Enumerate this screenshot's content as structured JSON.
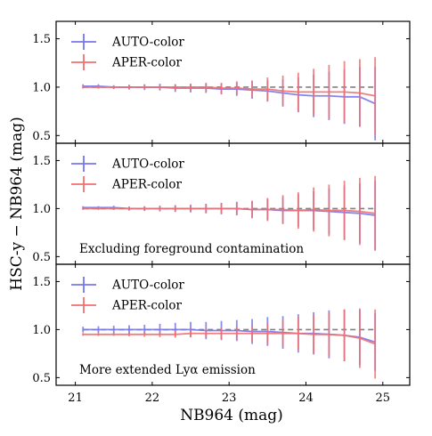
{
  "chart_data": {
    "type": "line",
    "xlabel": "NB964 (mag)",
    "ylabel": "HSC-y − NB964 (mag)",
    "xlim": [
      20.75,
      25.35
    ],
    "ylim": [
      0.42,
      1.68
    ],
    "xticks": [
      "21",
      "22",
      "23",
      "24",
      "25"
    ],
    "yticks": [
      "0.5",
      "1.0",
      "1.5"
    ],
    "x": [
      21.1,
      21.3,
      21.5,
      21.7,
      21.9,
      22.1,
      22.3,
      22.5,
      22.7,
      22.9,
      23.1,
      23.3,
      23.5,
      23.7,
      23.9,
      24.1,
      24.3,
      24.5,
      24.7,
      24.9
    ],
    "reference_line": 1.0,
    "legend_loc": "upper-left",
    "colors": {
      "AUTO-color": "#7777ee",
      "APER-color": "#f07070",
      "reference": "#808080"
    },
    "panels": [
      {
        "annotation": "",
        "series": [
          {
            "name": "AUTO-color",
            "values": [
              1.01,
              1.01,
              1.0,
              1.0,
              1.0,
              1.0,
              0.99,
              0.99,
              0.99,
              0.98,
              0.98,
              0.97,
              0.96,
              0.94,
              0.92,
              0.91,
              0.91,
              0.9,
              0.9,
              0.83
            ],
            "err": [
              0.02,
              0.02,
              0.02,
              0.025,
              0.03,
              0.035,
              0.04,
              0.045,
              0.05,
              0.055,
              0.07,
              0.09,
              0.11,
              0.14,
              0.18,
              0.22,
              0.25,
              0.28,
              0.31,
              0.38
            ]
          },
          {
            "name": "APER-color",
            "values": [
              1.0,
              1.0,
              1.0,
              1.0,
              1.0,
              1.0,
              1.0,
              1.0,
              1.0,
              0.99,
              0.99,
              0.98,
              0.98,
              0.96,
              0.95,
              0.95,
              0.95,
              0.95,
              0.94,
              0.91
            ],
            "err": [
              0.015,
              0.015,
              0.015,
              0.02,
              0.02,
              0.025,
              0.03,
              0.035,
              0.045,
              0.055,
              0.07,
              0.09,
              0.12,
              0.16,
              0.2,
              0.24,
              0.28,
              0.32,
              0.35,
              0.4
            ]
          }
        ]
      },
      {
        "annotation": "Excluding foreground contamination",
        "series": [
          {
            "name": "AUTO-color",
            "values": [
              1.01,
              1.01,
              1.01,
              1.0,
              1.0,
              1.0,
              1.0,
              1.0,
              1.0,
              1.0,
              1.0,
              0.99,
              0.99,
              0.98,
              0.98,
              0.98,
              0.97,
              0.96,
              0.95,
              0.93
            ],
            "err": [
              0.015,
              0.015,
              0.02,
              0.02,
              0.025,
              0.03,
              0.035,
              0.04,
              0.05,
              0.06,
              0.07,
              0.09,
              0.11,
              0.14,
              0.17,
              0.2,
              0.24,
              0.28,
              0.31,
              0.36
            ]
          },
          {
            "name": "APER-color",
            "values": [
              1.0,
              1.0,
              1.0,
              1.0,
              1.0,
              1.0,
              1.0,
              1.0,
              1.0,
              1.0,
              1.0,
              0.99,
              0.99,
              0.99,
              0.98,
              0.99,
              0.98,
              0.98,
              0.97,
              0.95
            ],
            "err": [
              0.015,
              0.015,
              0.015,
              0.02,
              0.02,
              0.025,
              0.03,
              0.035,
              0.045,
              0.055,
              0.07,
              0.09,
              0.12,
              0.15,
              0.19,
              0.23,
              0.27,
              0.31,
              0.35,
              0.39
            ]
          }
        ]
      },
      {
        "annotation": "More extended Lyα emission",
        "series": [
          {
            "name": "AUTO-color",
            "values": [
              1.0,
              1.0,
              1.0,
              1.0,
              1.0,
              1.0,
              1.0,
              1.0,
              0.99,
              0.99,
              0.99,
              0.98,
              0.98,
              0.97,
              0.96,
              0.96,
              0.95,
              0.94,
              0.92,
              0.87
            ],
            "err": [
              0.03,
              0.035,
              0.04,
              0.045,
              0.05,
              0.06,
              0.07,
              0.08,
              0.09,
              0.1,
              0.11,
              0.13,
              0.15,
              0.17,
              0.2,
              0.22,
              0.25,
              0.27,
              0.29,
              0.3
            ]
          },
          {
            "name": "APER-color",
            "values": [
              0.95,
              0.95,
              0.95,
              0.95,
              0.95,
              0.95,
              0.95,
              0.96,
              0.96,
              0.96,
              0.96,
              0.96,
              0.96,
              0.96,
              0.96,
              0.95,
              0.95,
              0.94,
              0.91,
              0.85
            ],
            "err": [
              0.015,
              0.015,
              0.015,
              0.02,
              0.025,
              0.03,
              0.035,
              0.04,
              0.05,
              0.06,
              0.07,
              0.09,
              0.11,
              0.14,
              0.17,
              0.2,
              0.23,
              0.27,
              0.31,
              0.36
            ]
          }
        ]
      }
    ]
  }
}
